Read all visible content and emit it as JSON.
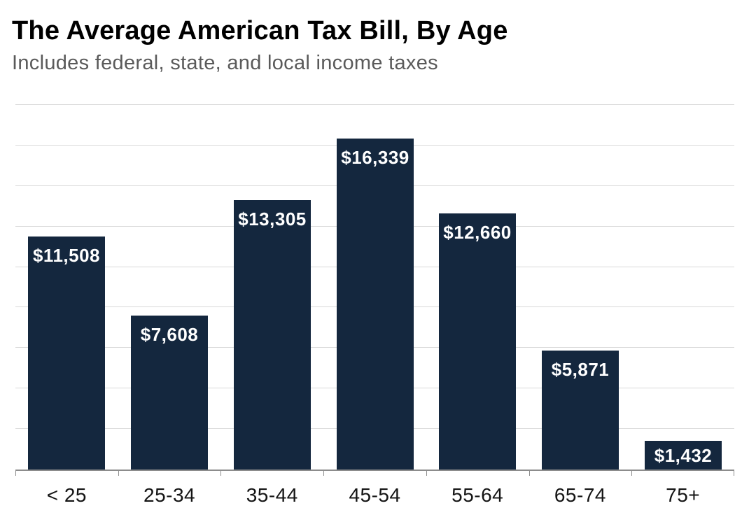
{
  "header": {
    "title": "The Average American Tax Bill, By Age",
    "subtitle": "Includes federal, state, and local income taxes"
  },
  "chart_data": {
    "type": "bar",
    "title": "The Average American Tax Bill, By Age",
    "subtitle": "Includes federal, state, and local income taxes",
    "categories": [
      "< 25",
      "25-34",
      "35-44",
      "45-54",
      "55-64",
      "65-74",
      "75+"
    ],
    "values": [
      11508,
      7608,
      13305,
      16339,
      12660,
      5871,
      1432
    ],
    "value_labels": [
      "$11,508",
      "$7,608",
      "$13,305",
      "$16,339",
      "$12,660",
      "$5,871",
      "$1,432"
    ],
    "xlabel": "",
    "ylabel": "",
    "ylim": [
      0,
      18000
    ],
    "gridline_interval": 2000,
    "grid": "horizontal-only",
    "y_tick_labels_shown": false,
    "legend": "none",
    "colors": {
      "bar": "#14273e",
      "value_label": "#ffffff",
      "gridline": "#d9d9d9",
      "axis": "#8c8c8c",
      "title": "#000000",
      "subtitle": "#5a5a5a",
      "x_tick_label": "#141414",
      "background": "#ffffff"
    }
  }
}
